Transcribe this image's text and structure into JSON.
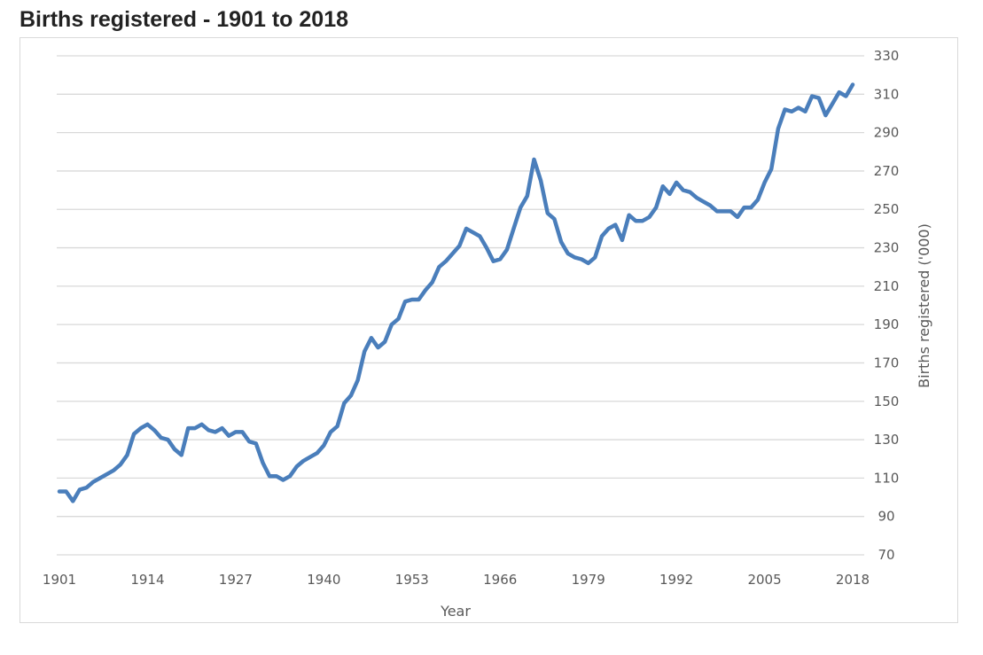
{
  "chart_data": {
    "type": "line",
    "title": "Births registered - 1901 to 2018",
    "xlabel": "Year",
    "ylabel": "Births registered ('000)",
    "y_axis_position": "right",
    "xlim": [
      1901,
      2018
    ],
    "ylim": [
      70,
      330
    ],
    "x_ticks": [
      1901,
      1914,
      1927,
      1940,
      1953,
      1966,
      1979,
      1992,
      2005,
      2018
    ],
    "y_ticks": [
      70,
      90,
      110,
      130,
      150,
      170,
      190,
      210,
      230,
      250,
      270,
      290,
      310,
      330
    ],
    "grid": true,
    "series_color": "#4a7ebb",
    "series": [
      {
        "name": "Births registered",
        "x_start": 1901,
        "values": [
          103,
          103,
          98,
          104,
          105,
          108,
          110,
          112,
          114,
          117,
          122,
          133,
          136,
          138,
          135,
          131,
          130,
          125,
          122,
          136,
          136,
          138,
          135,
          134,
          136,
          132,
          134,
          134,
          129,
          128,
          118,
          111,
          111,
          109,
          111,
          116,
          119,
          121,
          123,
          127,
          134,
          137,
          149,
          153,
          161,
          176,
          183,
          178,
          181,
          190,
          193,
          202,
          203,
          203,
          208,
          212,
          220,
          223,
          227,
          231,
          240,
          238,
          236,
          230,
          223,
          224,
          229,
          240,
          251,
          257,
          276,
          265,
          248,
          245,
          233,
          227,
          225,
          224,
          222,
          225,
          236,
          240,
          242,
          234,
          247,
          244,
          244,
          246,
          251,
          262,
          258,
          264,
          260,
          259,
          256,
          254,
          252,
          249,
          249,
          249,
          246,
          251,
          251,
          255,
          264,
          271,
          292,
          302,
          301,
          303,
          301,
          309,
          308,
          299,
          305,
          311,
          309,
          315
        ]
      }
    ]
  }
}
